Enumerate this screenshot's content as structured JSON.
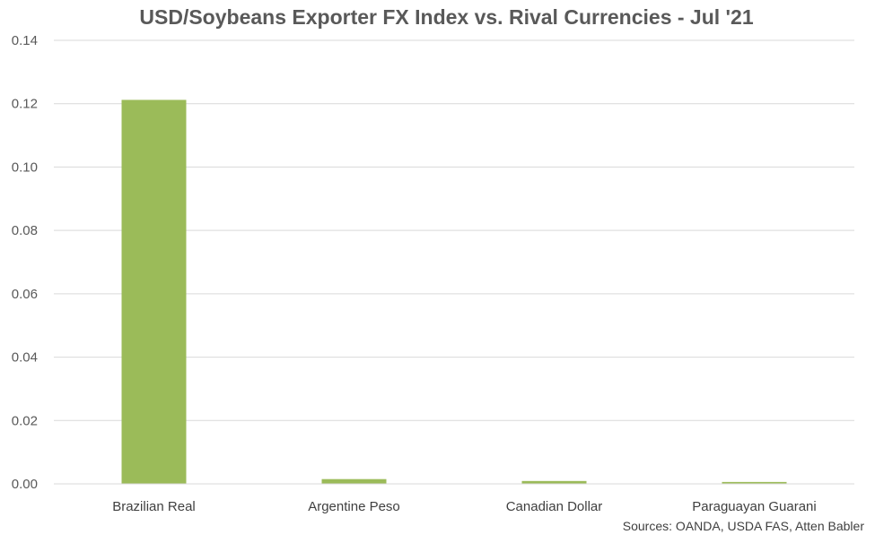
{
  "chart_data": {
    "type": "bar",
    "title": "USD/Soybeans Exporter FX Index vs. Rival Currencies - Jul '21",
    "xlabel": "",
    "ylabel": "",
    "categories": [
      "Brazilian Real",
      "Argentine Peso",
      "Canadian Dollar",
      "Paraguayan Guarani"
    ],
    "values": [
      0.1212,
      0.0015,
      0.0009,
      0.0006
    ],
    "ylim": [
      0,
      0.14
    ],
    "yticks": [
      "0.00",
      "0.02",
      "0.04",
      "0.06",
      "0.08",
      "0.10",
      "0.12",
      "0.14"
    ],
    "grid": true,
    "legend": "none",
    "bar_color": "#9BBB59",
    "gridline_color": "#D9D9D9"
  },
  "source": "Sources: OANDA, USDA FAS, Atten Babler"
}
